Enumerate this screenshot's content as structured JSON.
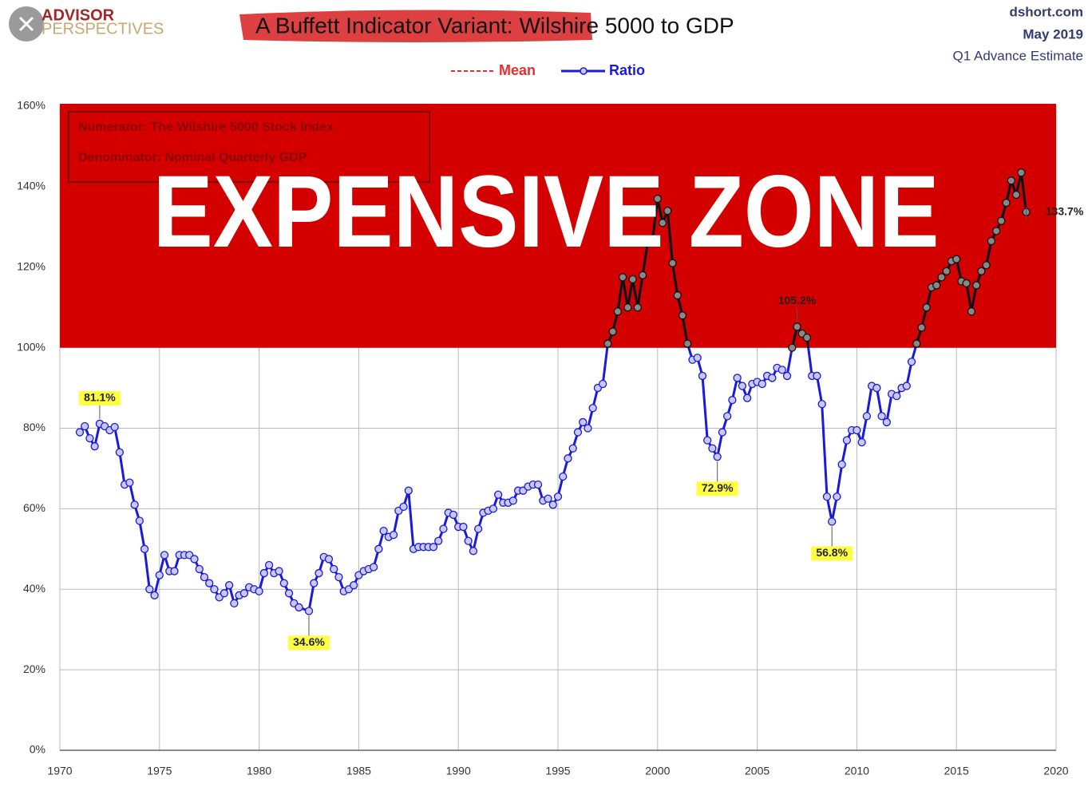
{
  "header": {
    "logo_top": "ADVISOR",
    "logo_bottom": "PERSPECTIVES",
    "source": "dshort.com",
    "date": "May 2019",
    "estimate": "Q1 Advance Estimate"
  },
  "chart_data": {
    "type": "line",
    "title": "A Buffett Indicator Variant: Wilshire 5000 to GDP",
    "legend": [
      {
        "name": "Mean",
        "color": "#e03030",
        "style": "dashed"
      },
      {
        "name": "Ratio",
        "color": "#1a1adc",
        "style": "solid"
      }
    ],
    "notes": [
      "Numerator: The Wilshire 5000 Stock Index",
      "Denominator: Nominal Quarterly GDP"
    ],
    "zone": {
      "label": "EXPENSIVE ZONE",
      "range": [
        100,
        160
      ],
      "color": "#d40000"
    },
    "series": [
      {
        "name": "Ratio",
        "color": "#1a1adc",
        "zone_color": "#111111",
        "x": [
          1971,
          1971.25,
          1971.5,
          1971.75,
          1972,
          1972.25,
          1972.5,
          1972.75,
          1973,
          1973.25,
          1973.5,
          1973.75,
          1974,
          1974.25,
          1974.5,
          1974.75,
          1975,
          1975.25,
          1975.5,
          1975.75,
          1976,
          1976.25,
          1976.5,
          1976.75,
          1977,
          1977.25,
          1977.5,
          1977.75,
          1978,
          1978.25,
          1978.5,
          1978.75,
          1979,
          1979.25,
          1979.5,
          1979.75,
          1980,
          1980.25,
          1980.5,
          1980.75,
          1981,
          1981.25,
          1981.5,
          1981.75,
          1982,
          1982.5,
          1982.75,
          1983,
          1983.25,
          1983.5,
          1983.75,
          1984,
          1984.25,
          1984.5,
          1984.75,
          1985,
          1985.25,
          1985.5,
          1985.75,
          1986,
          1986.25,
          1986.5,
          1986.75,
          1987,
          1987.25,
          1987.5,
          1987.75,
          1988,
          1988.25,
          1988.5,
          1988.75,
          1989,
          1989.25,
          1989.5,
          1989.75,
          1990,
          1990.25,
          1990.5,
          1990.75,
          1991,
          1991.25,
          1991.5,
          1991.75,
          1992,
          1992.25,
          1992.5,
          1992.75,
          1993,
          1993.25,
          1993.5,
          1993.75,
          1994,
          1994.25,
          1994.5,
          1994.75,
          1995,
          1995.25,
          1995.5,
          1995.75,
          1996,
          1996.25,
          1996.5,
          1996.75,
          1997,
          1997.25,
          1997.5,
          1997.75,
          1998,
          1998.25,
          1998.5,
          1998.75,
          1999,
          1999.25,
          1999.5,
          1999.75,
          2000,
          2000.25,
          2000.5,
          2000.75,
          2001,
          2001.25,
          2001.5,
          2001.75,
          2002,
          2002.25,
          2002.5,
          2002.75,
          2003,
          2003.25,
          2003.5,
          2003.75,
          2004,
          2004.25,
          2004.5,
          2004.75,
          2005,
          2005.25,
          2005.5,
          2005.75,
          2006,
          2006.25,
          2006.5,
          2006.75,
          2007,
          2007.25,
          2007.5,
          2007.75,
          2008,
          2008.25,
          2008.5,
          2008.75,
          2009,
          2009.25,
          2009.5,
          2009.75,
          2010,
          2010.25,
          2010.5,
          2010.75,
          2011,
          2011.25,
          2011.5,
          2011.75,
          2012,
          2012.25,
          2012.5,
          2012.75,
          2013,
          2013.25,
          2013.5,
          2013.75,
          2014,
          2014.25,
          2014.5,
          2014.75,
          2015,
          2015.25,
          2015.5,
          2015.75,
          2016,
          2016.25,
          2016.5,
          2016.75,
          2017,
          2017.25,
          2017.5,
          2017.75,
          2018,
          2018.25,
          2018.5
        ],
        "values": [
          79,
          80.5,
          77.5,
          75.5,
          81.1,
          80.5,
          79.5,
          80.3,
          74,
          66,
          66.5,
          61,
          57,
          50,
          40,
          38.5,
          43.5,
          48.5,
          44.5,
          44.5,
          48.5,
          48.5,
          48.5,
          47.5,
          45,
          43,
          41.5,
          40,
          38,
          39,
          41,
          36.5,
          38.5,
          39,
          40.5,
          40,
          39.5,
          44,
          46,
          44,
          44.5,
          41.5,
          39,
          36.5,
          35.5,
          34.6,
          41.5,
          44,
          48,
          47.5,
          45,
          43,
          39.5,
          40,
          41,
          43.5,
          44.5,
          45,
          45.5,
          50,
          54.5,
          53,
          53.5,
          59.5,
          60.5,
          64.5,
          50,
          50.5,
          50.5,
          50.5,
          50.5,
          52,
          55,
          59,
          58.5,
          55.5,
          55.5,
          52,
          49.5,
          55,
          59,
          59.5,
          60,
          63.5,
          61.5,
          61.5,
          62,
          64.5,
          64.5,
          65.5,
          66,
          66,
          62,
          62.5,
          61,
          63,
          68,
          72.5,
          75,
          79,
          81.5,
          80,
          85,
          90,
          91,
          101,
          104,
          109,
          117.5,
          110,
          117,
          110,
          118,
          126,
          127,
          137,
          131,
          134,
          121,
          113,
          108,
          101,
          97,
          97.5,
          93,
          77,
          75,
          72.9,
          79,
          83,
          87,
          92.5,
          90.5,
          87.5,
          91,
          91.5,
          91,
          93,
          92.5,
          95,
          94.5,
          93,
          100,
          105.2,
          103.5,
          102.5,
          93,
          93,
          86,
          63,
          56.8,
          63,
          71,
          77,
          79.5,
          79.5,
          76.5,
          83,
          90.5,
          90,
          83,
          81.5,
          88.5,
          88,
          90,
          90.5,
          96.5,
          101,
          105,
          110,
          115,
          115.5,
          117.5,
          119,
          121.5,
          122,
          116.5,
          116,
          109,
          115.5,
          119,
          120.5,
          126.5,
          129,
          131.5,
          136,
          141.5,
          138,
          143.5,
          133.7
        ]
      }
    ],
    "annotations": [
      {
        "label": "81.1%",
        "value": 81.1,
        "x": 1972,
        "highlight": true
      },
      {
        "label": "34.6%",
        "value": 34.6,
        "x": 1982.5,
        "highlight": true
      },
      {
        "label": "72.9%",
        "value": 72.9,
        "x": 2003,
        "highlight": true
      },
      {
        "label": "56.8%",
        "value": 56.8,
        "x": 2008.75,
        "highlight": true
      },
      {
        "label": "105.2%",
        "value": 105.2,
        "x": 2007,
        "highlight": false
      },
      {
        "label": "133.7%",
        "value": 133.7,
        "x": 2018.5,
        "highlight": false
      }
    ],
    "xlim": [
      1970,
      2020
    ],
    "xticks": [
      1970,
      1975,
      1980,
      1985,
      1990,
      1995,
      2000,
      2005,
      2010,
      2015,
      2020
    ],
    "ylim": [
      0,
      160
    ],
    "yticks": [
      {
        "value": 0,
        "label": "0%"
      },
      {
        "value": 20,
        "label": "20%"
      },
      {
        "value": 40,
        "label": "40%"
      },
      {
        "value": 60,
        "label": "60%"
      },
      {
        "value": 80,
        "label": "80%"
      },
      {
        "value": 100,
        "label": "100%"
      },
      {
        "value": 120,
        "label": "120%"
      },
      {
        "value": 140,
        "label": "140%"
      },
      {
        "value": 160,
        "label": "160%"
      }
    ],
    "grid": true
  }
}
